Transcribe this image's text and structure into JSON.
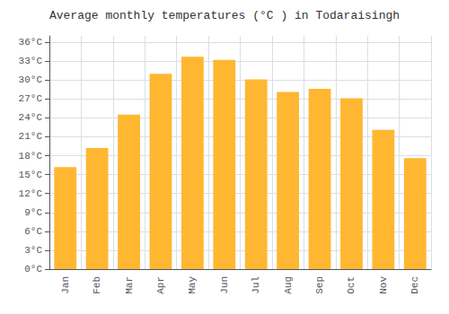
{
  "chart_data": {
    "type": "bar",
    "title": "Average monthly temperatures (°C ) in Todaraisingh",
    "categories": [
      "Jan",
      "Feb",
      "Mar",
      "Apr",
      "May",
      "Jun",
      "Jul",
      "Aug",
      "Sep",
      "Oct",
      "Nov",
      "Dec"
    ],
    "values": [
      16.2,
      19.2,
      24.5,
      31.0,
      33.7,
      33.2,
      30.1,
      28.1,
      28.6,
      27.1,
      22.1,
      17.6
    ],
    "color": "#FFB732",
    "ylim": [
      0,
      37
    ],
    "yticks": [
      {
        "value": 0,
        "label": "0°C"
      },
      {
        "value": 3,
        "label": "3°C"
      },
      {
        "value": 6,
        "label": "6°C"
      },
      {
        "value": 9,
        "label": "9°C"
      },
      {
        "value": 12,
        "label": "12°C"
      },
      {
        "value": 15,
        "label": "15°C"
      },
      {
        "value": 18,
        "label": "18°C"
      },
      {
        "value": 21,
        "label": "21°C"
      },
      {
        "value": 24,
        "label": "24°C"
      },
      {
        "value": 27,
        "label": "27°C"
      },
      {
        "value": 30,
        "label": "30°C"
      },
      {
        "value": 33,
        "label": "33°C"
      },
      {
        "value": 36,
        "label": "36°C"
      }
    ],
    "grid": true
  }
}
